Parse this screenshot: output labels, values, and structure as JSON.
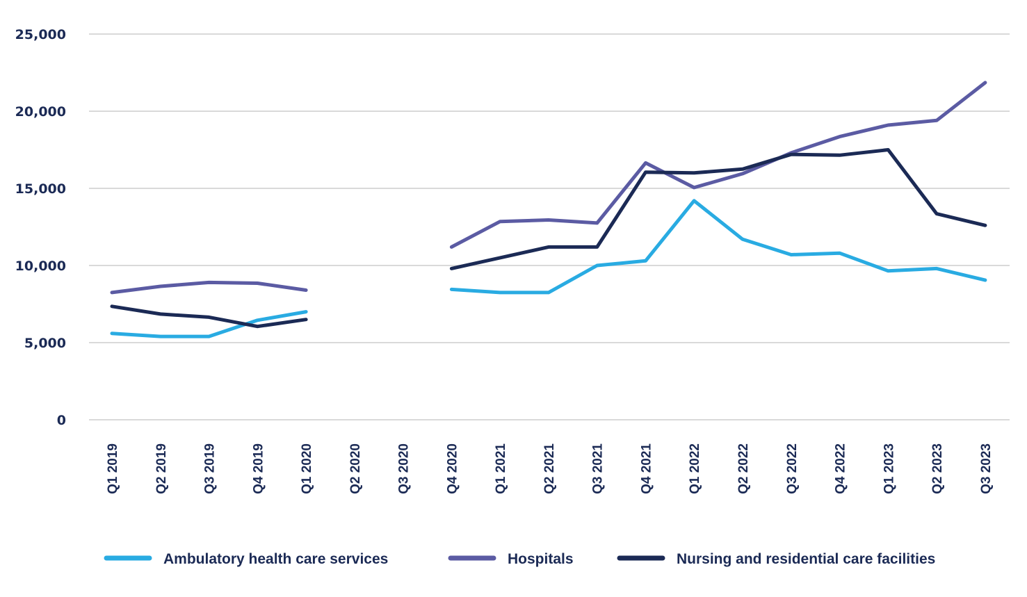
{
  "chart_data": {
    "type": "line",
    "title": "",
    "xlabel": "",
    "ylabel": "",
    "ylim": [
      0,
      25000
    ],
    "yticks": [
      0,
      5000,
      10000,
      15000,
      20000,
      25000
    ],
    "ytick_labels": [
      "0",
      "5,000",
      "10,000",
      "15,000",
      "20,000",
      "25,000"
    ],
    "grid": true,
    "legend_position": "bottom",
    "categories": [
      "Q1 2019",
      "Q2 2019",
      "Q3 2019",
      "Q4 2019",
      "Q1 2020",
      "Q2 2020",
      "Q3 2020",
      "Q4 2020",
      "Q1 2021",
      "Q2 2021",
      "Q3 2021",
      "Q4 2021",
      "Q1 2022",
      "Q2 2022",
      "Q3 2022",
      "Q4 2022",
      "Q1 2023",
      "Q2 2023",
      "Q3 2023"
    ],
    "series": [
      {
        "name": "Ambulatory health care services",
        "color": "#29abe2",
        "values": [
          5600,
          5400,
          5400,
          6450,
          7000,
          null,
          null,
          8450,
          8250,
          8250,
          10000,
          10300,
          14200,
          11700,
          10700,
          10800,
          9650,
          9800,
          9050
        ]
      },
      {
        "name": "Hospitals",
        "color": "#5b5ba3",
        "values": [
          8250,
          8650,
          8900,
          8850,
          8400,
          null,
          null,
          11200,
          12850,
          12950,
          12750,
          16650,
          15050,
          15950,
          17300,
          18350,
          19100,
          19400,
          21850
        ]
      },
      {
        "name": "Nursing and residential care facilities",
        "color": "#1b2a55",
        "values": [
          7350,
          6850,
          6650,
          6050,
          6500,
          null,
          null,
          9800,
          10500,
          11200,
          11200,
          16050,
          16000,
          16250,
          17200,
          17150,
          17500,
          13350,
          12600
        ]
      }
    ]
  }
}
